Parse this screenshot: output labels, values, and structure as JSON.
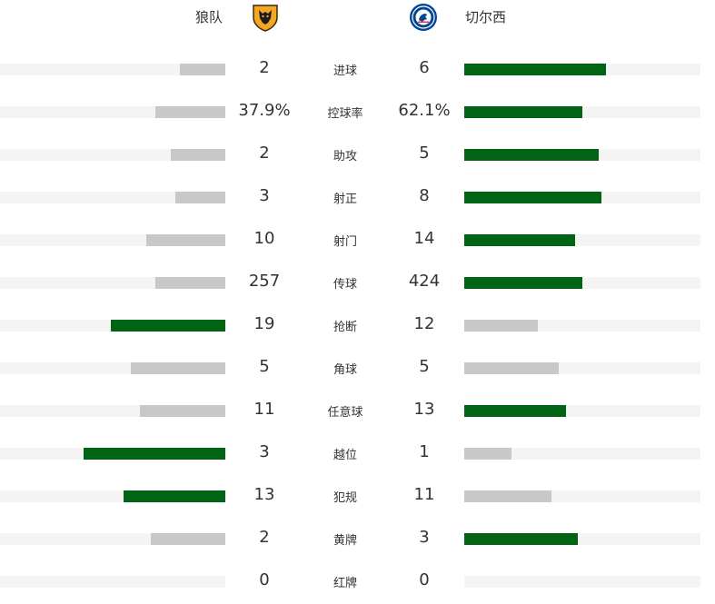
{
  "header": {
    "home_team": "狼队",
    "away_team": "切尔西",
    "home_logo_icon": "wolves-crest-icon",
    "away_logo_icon": "chelsea-crest-icon"
  },
  "colors": {
    "winner_bar": "#006414",
    "loser_bar": "#c8c8c8",
    "track": "#f4f4f4"
  },
  "stats": [
    {
      "label": "进球",
      "home": "2",
      "away": "6",
      "home_fill": 0.2,
      "away_fill": 0.6,
      "leader": "away"
    },
    {
      "label": "控球率",
      "home": "37.9%",
      "away": "62.1%",
      "home_fill": 0.31,
      "away_fill": 0.5,
      "leader": "away"
    },
    {
      "label": "助攻",
      "home": "2",
      "away": "5",
      "home_fill": 0.24,
      "away_fill": 0.57,
      "leader": "away"
    },
    {
      "label": "射正",
      "home": "3",
      "away": "8",
      "home_fill": 0.22,
      "away_fill": 0.58,
      "leader": "away"
    },
    {
      "label": "射门",
      "home": "10",
      "away": "14",
      "home_fill": 0.35,
      "away_fill": 0.47,
      "leader": "away"
    },
    {
      "label": "传球",
      "home": "257",
      "away": "424",
      "home_fill": 0.31,
      "away_fill": 0.5,
      "leader": "away"
    },
    {
      "label": "抢断",
      "home": "19",
      "away": "12",
      "home_fill": 0.51,
      "away_fill": 0.31,
      "leader": "home"
    },
    {
      "label": "角球",
      "home": "5",
      "away": "5",
      "home_fill": 0.42,
      "away_fill": 0.4,
      "leader": "none"
    },
    {
      "label": "任意球",
      "home": "11",
      "away": "13",
      "home_fill": 0.38,
      "away_fill": 0.43,
      "leader": "away"
    },
    {
      "label": "越位",
      "home": "3",
      "away": "1",
      "home_fill": 0.63,
      "away_fill": 0.2,
      "leader": "home"
    },
    {
      "label": "犯规",
      "home": "13",
      "away": "11",
      "home_fill": 0.45,
      "away_fill": 0.37,
      "leader": "home"
    },
    {
      "label": "黄牌",
      "home": "2",
      "away": "3",
      "home_fill": 0.33,
      "away_fill": 0.48,
      "leader": "away"
    },
    {
      "label": "红牌",
      "home": "0",
      "away": "0",
      "home_fill": 0,
      "away_fill": 0,
      "leader": "none"
    }
  ]
}
